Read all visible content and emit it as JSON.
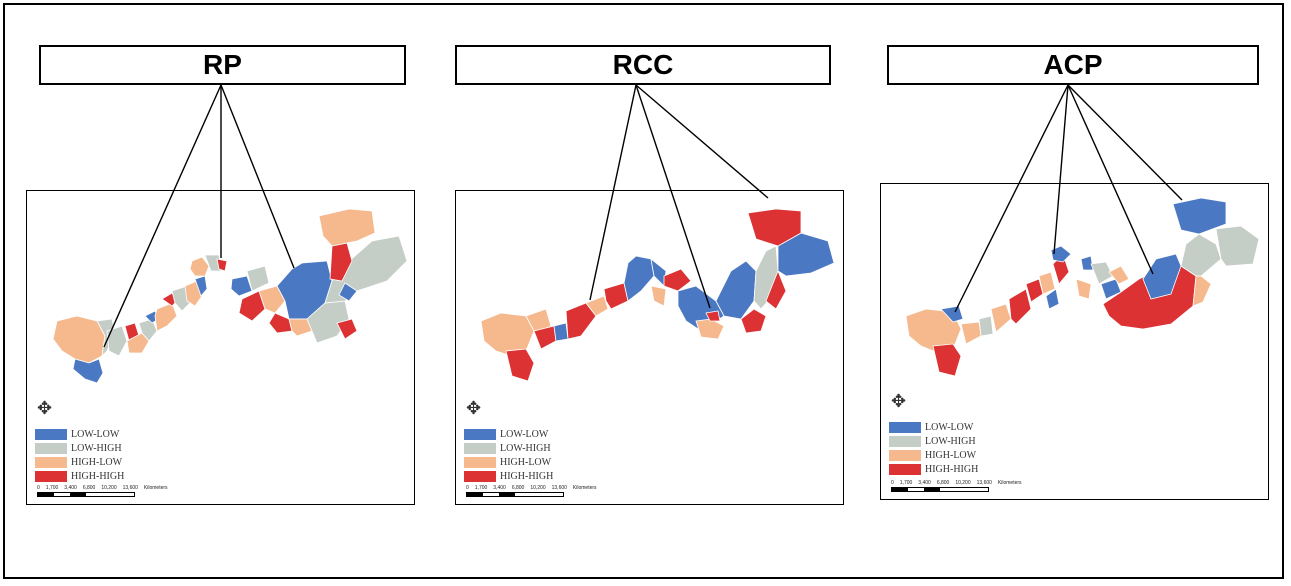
{
  "colors": {
    "low_low": "#4a78c2",
    "low_high": "#c5cdc7",
    "high_low": "#f6b98d",
    "high_high": "#dc3234"
  },
  "panels": [
    {
      "title": "RP",
      "legend": [
        "LOW-LOW",
        "LOW-HIGH",
        "HIGH-LOW",
        "HIGH-HIGH"
      ],
      "scale_labels": [
        "0",
        "1,700",
        "3,400",
        "6,800",
        "10,200",
        "13,600"
      ],
      "scale_unit": "Kilometers"
    },
    {
      "title": "RCC",
      "legend": [
        "LOW-LOW",
        "LOW-HIGH",
        "HIGH-LOW",
        "HIGH-HIGH"
      ],
      "scale_labels": [
        "0",
        "1,700",
        "3,400",
        "6,800",
        "10,200",
        "13,600"
      ],
      "scale_unit": "Kilometers"
    },
    {
      "title": "ACP",
      "legend": [
        "LOW-LOW",
        "LOW-HIGH",
        "HIGH-LOW",
        "HIGH-HIGH"
      ],
      "scale_labels": [
        "0",
        "1,700",
        "3,400",
        "6,800",
        "10,200",
        "13,600"
      ],
      "scale_unit": "Kilometers"
    }
  ]
}
